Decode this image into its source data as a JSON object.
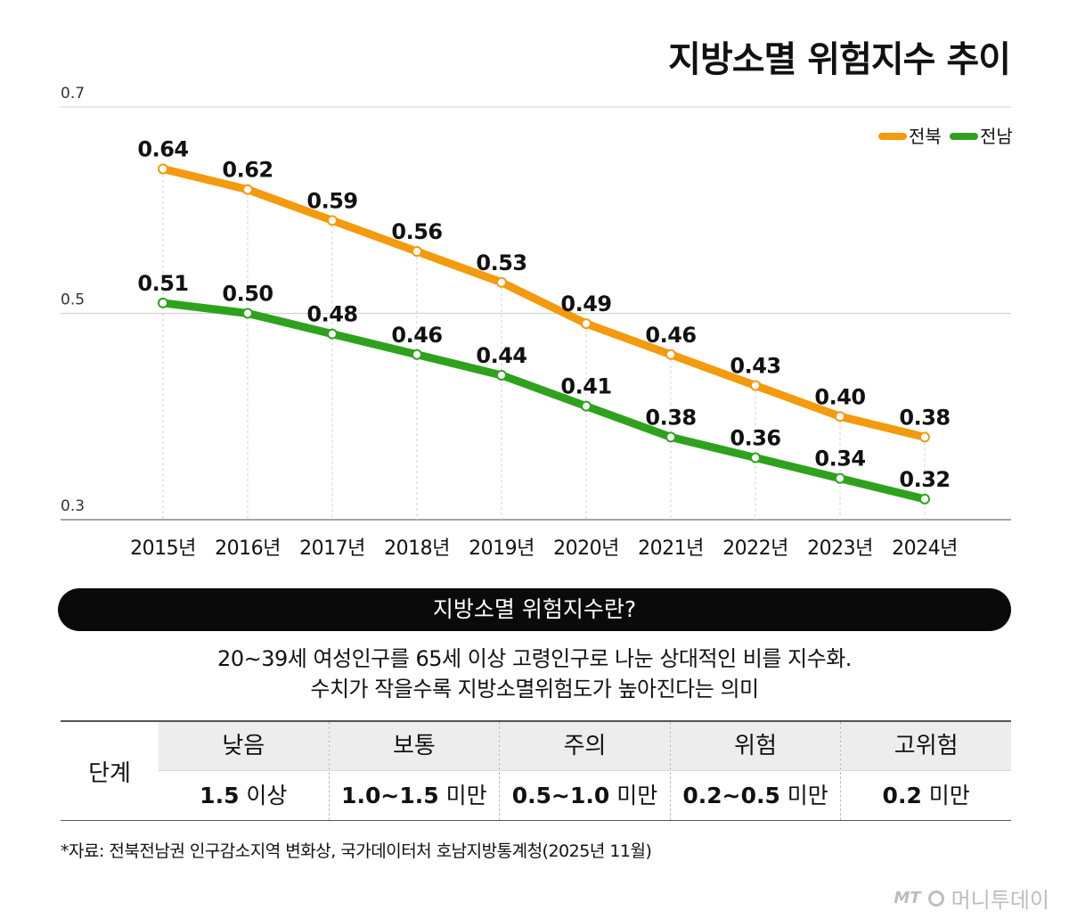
{
  "chart_data": {
    "type": "line",
    "title": "지방소멸 위험지수 추이",
    "categories": [
      "2015년",
      "2016년",
      "2017년",
      "2018년",
      "2019년",
      "2020년",
      "2021년",
      "2022년",
      "2023년",
      "2024년"
    ],
    "series": [
      {
        "name": "전북",
        "color": "#f39a0d",
        "values": [
          0.64,
          0.62,
          0.59,
          0.56,
          0.53,
          0.49,
          0.46,
          0.43,
          0.4,
          0.38
        ]
      },
      {
        "name": "전남",
        "color": "#2fa21d",
        "values": [
          0.51,
          0.5,
          0.48,
          0.46,
          0.44,
          0.41,
          0.38,
          0.36,
          0.34,
          0.32
        ]
      }
    ],
    "value_labels": {
      "전북": [
        "0.64",
        "0.62",
        "0.59",
        "0.56",
        "0.53",
        "0.49",
        "0.46",
        "0.43",
        "0.40",
        "0.38"
      ],
      "전남": [
        "0.51",
        "0.50",
        "0.48",
        "0.46",
        "0.44",
        "0.41",
        "0.38",
        "0.36",
        "0.34",
        "0.32"
      ]
    },
    "y_ticks": [
      "0.7",
      "0.5",
      "0.3"
    ],
    "ylim": [
      0.3,
      0.7
    ],
    "legend_position": "top-right",
    "grid": true
  },
  "definition": {
    "heading": "지방소멸 위험지수란?",
    "line1": "20∼39세 여성인구를 65세 이상 고령인구로 나눈 상대적인 비를 지수화.",
    "line2": "수치가 작을수록 지방소멸위험도가 높아진다는 의미"
  },
  "stages": {
    "header": "단계",
    "levels": [
      {
        "name": "낮음",
        "num": "1.5",
        "suffix": " 이상"
      },
      {
        "name": "보통",
        "num": "1.0∼1.5",
        "suffix": " 미만"
      },
      {
        "name": "주의",
        "num": "0.5∼1.0",
        "suffix": " 미만"
      },
      {
        "name": "위험",
        "num": "0.2∼0.5",
        "suffix": " 미만"
      },
      {
        "name": "고위험",
        "num": "0.2",
        "suffix": " 미만"
      }
    ]
  },
  "source": "*자료: 전북전남권 인구감소지역 변화상, 국가데이터처 호남지방통계청(2025년 11월)",
  "brand": {
    "mark": "MT",
    "name": "머니투데이"
  }
}
